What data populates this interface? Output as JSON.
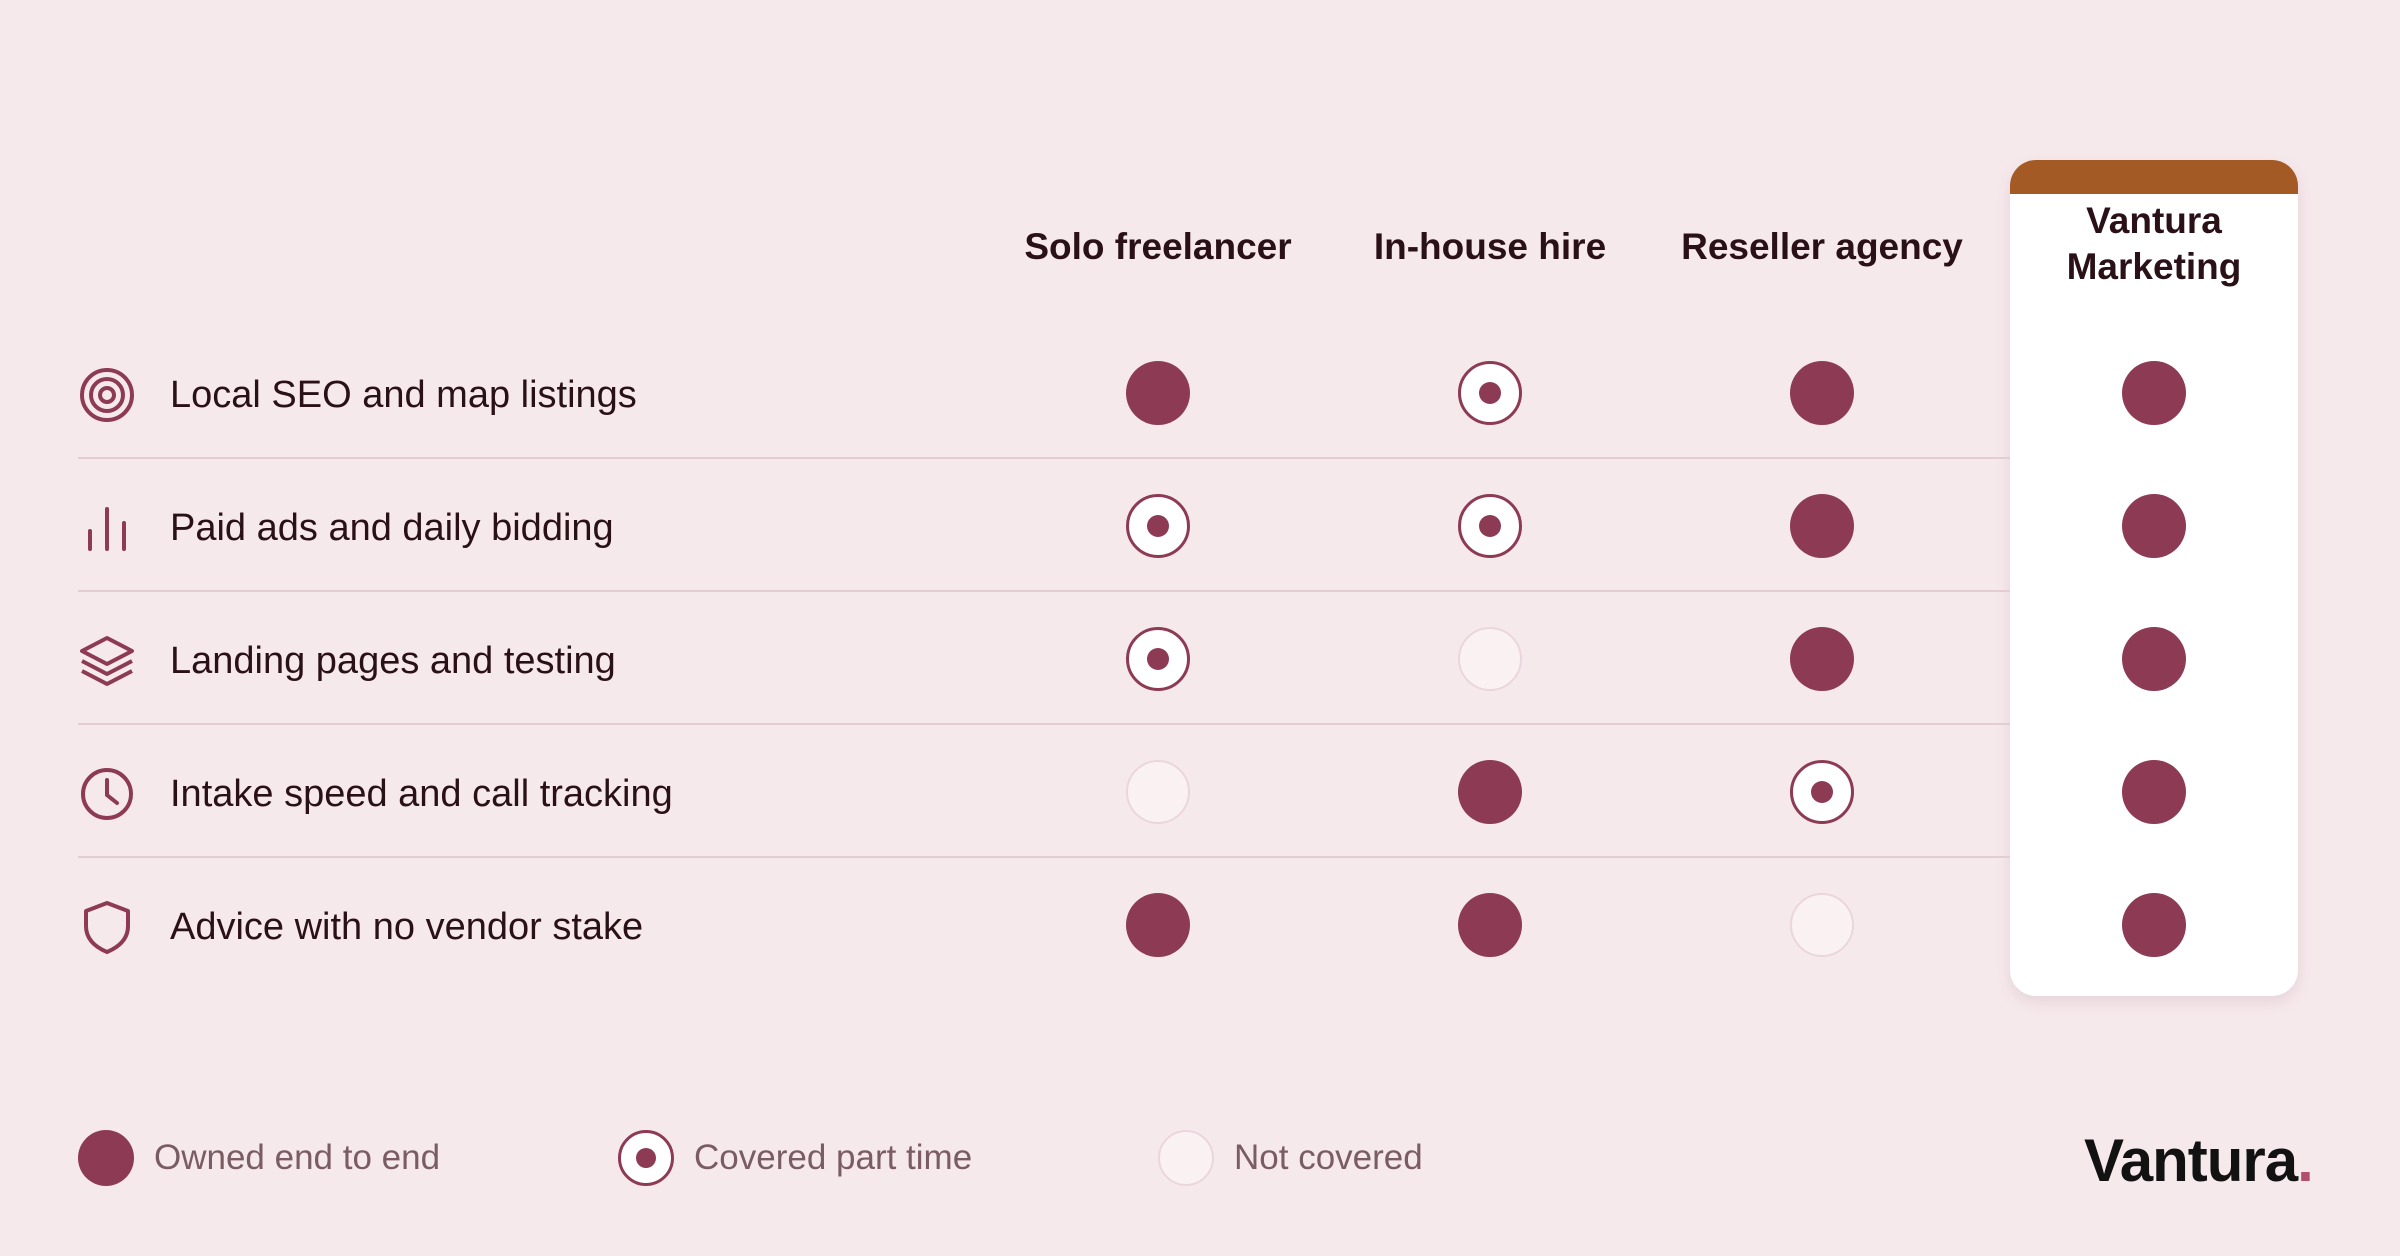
{
  "columns": [
    {
      "label": "Solo freelancer"
    },
    {
      "label": "In-house hire"
    },
    {
      "label": "Reseller agency"
    },
    {
      "label": "Vantura Marketing"
    }
  ],
  "rows": [
    {
      "label": "Local SEO and map listings",
      "icon": "target-icon",
      "values": [
        "full",
        "part",
        "full",
        "full"
      ]
    },
    {
      "label": "Paid ads and daily bidding",
      "icon": "bar-chart-icon",
      "values": [
        "part",
        "part",
        "full",
        "full"
      ]
    },
    {
      "label": "Landing pages and testing",
      "icon": "layers-icon",
      "values": [
        "part",
        "none",
        "full",
        "full"
      ]
    },
    {
      "label": "Intake speed and call tracking",
      "icon": "clock-icon",
      "values": [
        "none",
        "full",
        "part",
        "full"
      ]
    },
    {
      "label": "Advice with no vendor stake",
      "icon": "shield-icon",
      "values": [
        "full",
        "full",
        "none",
        "full"
      ]
    }
  ],
  "legend": [
    {
      "type": "full",
      "label": "Owned end to end"
    },
    {
      "type": "part",
      "label": "Covered part time"
    },
    {
      "type": "none",
      "label": "Not covered"
    }
  ],
  "brand": {
    "name": "Vantura",
    "dot": "."
  },
  "colors": {
    "accent": "#8d3a55",
    "highlight_band": "#a45a24",
    "background": "#f6e9ec"
  }
}
